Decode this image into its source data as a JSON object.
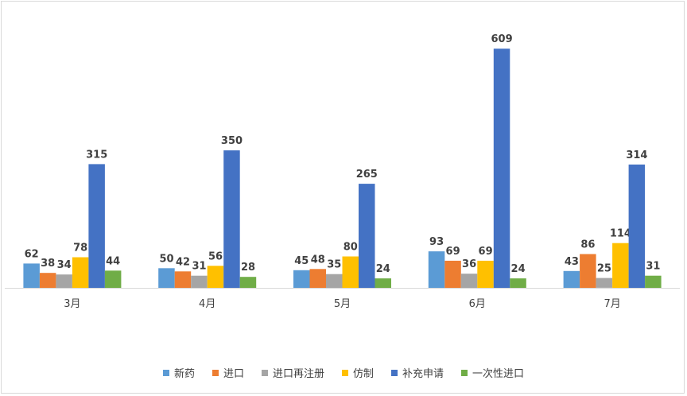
{
  "chart_data": {
    "type": "bar",
    "title": "",
    "xlabel": "",
    "ylabel": "",
    "categories": [
      "3月",
      "4月",
      "5月",
      "6月",
      "7月"
    ],
    "series": [
      {
        "name": "新药",
        "color": "#5B9BD5",
        "values": [
          62,
          50,
          45,
          93,
          43
        ]
      },
      {
        "name": "进口",
        "color": "#ED7D31",
        "values": [
          38,
          42,
          48,
          69,
          86
        ]
      },
      {
        "name": "进口再注册",
        "color": "#A5A5A5",
        "values": [
          34,
          31,
          35,
          36,
          25
        ]
      },
      {
        "name": "仿制",
        "color": "#FFC000",
        "values": [
          78,
          56,
          80,
          69,
          114
        ]
      },
      {
        "name": "补充申请",
        "color": "#4472C4",
        "values": [
          315,
          350,
          265,
          609,
          314
        ]
      },
      {
        "name": "一次性进口",
        "color": "#70AD47",
        "values": [
          44,
          28,
          24,
          24,
          31
        ]
      }
    ],
    "ylim": [
      0,
      650
    ],
    "grid": false,
    "legend_position": "bottom",
    "data_labels": true
  }
}
